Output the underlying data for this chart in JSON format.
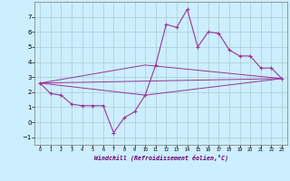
{
  "xlabel": "Windchill (Refroidissement éolien,°C)",
  "background_color": "#cceeff",
  "grid_color": "#aacccc",
  "line_color": "#993399",
  "xlim": [
    -0.5,
    23.5
  ],
  "ylim": [
    -1.5,
    8.0
  ],
  "xticks": [
    0,
    1,
    2,
    3,
    4,
    5,
    6,
    7,
    8,
    9,
    10,
    11,
    12,
    13,
    14,
    15,
    16,
    17,
    18,
    19,
    20,
    21,
    22,
    23
  ],
  "yticks": [
    -1,
    0,
    1,
    2,
    3,
    4,
    5,
    6,
    7
  ],
  "series1_x": [
    0,
    1,
    2,
    3,
    4,
    5,
    6,
    7,
    8,
    9,
    10,
    11,
    12,
    13,
    14,
    15,
    16,
    17,
    18,
    19,
    20,
    21,
    22,
    23
  ],
  "series1_y": [
    2.6,
    1.9,
    1.8,
    1.2,
    1.1,
    1.1,
    1.1,
    -0.7,
    0.3,
    0.7,
    1.8,
    3.8,
    6.5,
    6.3,
    7.5,
    5.0,
    6.0,
    5.9,
    4.8,
    4.4,
    4.4,
    3.6,
    3.6,
    2.9
  ],
  "series2_x": [
    0,
    23
  ],
  "series2_y": [
    2.6,
    2.9
  ],
  "series3_x": [
    0,
    10,
    23
  ],
  "series3_y": [
    2.6,
    1.8,
    2.9
  ],
  "series4_x": [
    0,
    10,
    23
  ],
  "series4_y": [
    2.6,
    3.8,
    2.9
  ]
}
